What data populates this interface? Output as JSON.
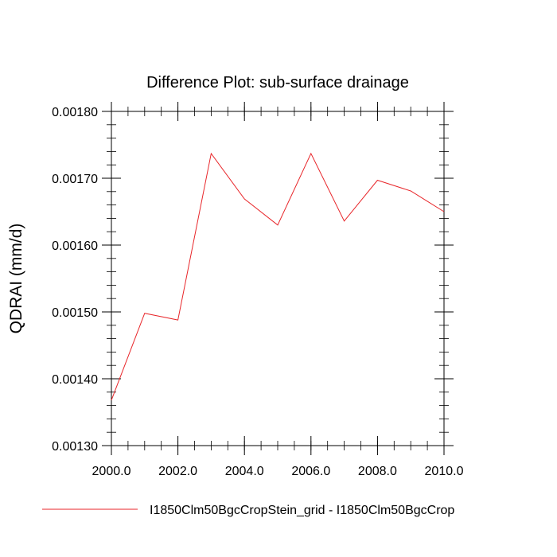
{
  "chart_data": {
    "type": "line",
    "title": "Difference Plot: sub-surface drainage",
    "xlabel": "",
    "ylabel": "QDRAI  (mm/d)",
    "xlim": [
      2000.0,
      2010.0
    ],
    "ylim": [
      0.0013,
      0.0018
    ],
    "x_ticks": [
      "2000.0",
      "2002.0",
      "2004.0",
      "2006.0",
      "2008.0",
      "2010.0"
    ],
    "x_tick_values": [
      2000,
      2002,
      2004,
      2006,
      2008,
      2010
    ],
    "y_ticks": [
      "0.00130",
      "0.00140",
      "0.00150",
      "0.00160",
      "0.00170",
      "0.00180"
    ],
    "y_tick_values": [
      0.0013,
      0.0014,
      0.0015,
      0.0016,
      0.0017,
      0.0018
    ],
    "grid": false,
    "legend_position": "bottom",
    "series": [
      {
        "name": "I1850Clm50BgcCropStein_grid - I1850Clm50BgcCrop",
        "color": "#e8262a",
        "x": [
          2000,
          2001,
          2002,
          2003,
          2004,
          2005,
          2006,
          2007,
          2008,
          2009,
          2010
        ],
        "y": [
          0.001368,
          0.001498,
          0.001488,
          0.001737,
          0.001669,
          0.00163,
          0.001737,
          0.001636,
          0.001697,
          0.001681,
          0.00165
        ]
      }
    ]
  }
}
